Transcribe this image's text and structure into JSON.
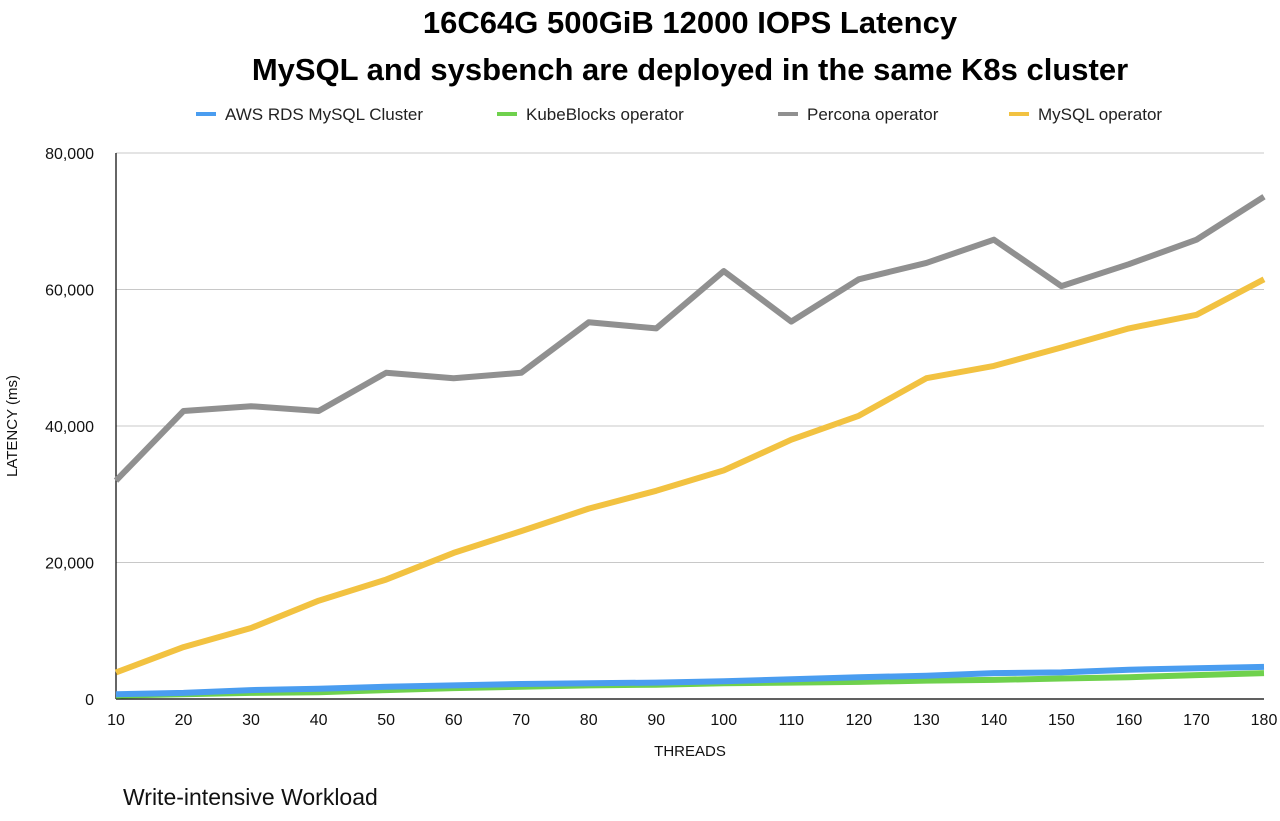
{
  "chart_data": {
    "type": "line",
    "title": [
      "16C64G 500GiB 12000 IOPS Latency",
      "MySQL and sysbench are deployed in the same K8s cluster"
    ],
    "xlabel": "THREADS",
    "ylabel": "LATENCY  (ms)",
    "footnote": "Write-intensive Workload",
    "x": [
      10,
      20,
      30,
      40,
      50,
      60,
      70,
      80,
      90,
      100,
      110,
      120,
      130,
      140,
      150,
      160,
      170,
      180
    ],
    "x_tick_labels": [
      "10",
      "20",
      "30",
      "40",
      "50",
      "60",
      "70",
      "80",
      "90",
      "100",
      "110",
      "120",
      "130",
      "140",
      "150",
      "160",
      "170",
      "180"
    ],
    "ylim": [
      0,
      80000
    ],
    "y_ticks": [
      0,
      20000,
      40000,
      60000,
      80000
    ],
    "y_tick_labels": [
      "0",
      "20,000",
      "40,000",
      "60,000",
      "80,000"
    ],
    "grid": "horizontal",
    "legend_position": "top",
    "series": [
      {
        "name": "AWS RDS MySQL Cluster",
        "color": "#4a9df0",
        "values": [
          700,
          900,
          1300,
          1500,
          1800,
          2000,
          2200,
          2300,
          2400,
          2600,
          2900,
          3200,
          3400,
          3800,
          3900,
          4300,
          4500,
          4700
        ]
      },
      {
        "name": "KubeBlocks operator",
        "color": "#6fd14d",
        "values": [
          500,
          700,
          900,
          1000,
          1300,
          1600,
          1800,
          2000,
          2100,
          2300,
          2400,
          2500,
          2700,
          2800,
          3000,
          3200,
          3500,
          3800
        ]
      },
      {
        "name": "Percona operator",
        "color": "#909090",
        "values": [
          32000,
          42200,
          42900,
          42200,
          47800,
          47000,
          47800,
          55200,
          54300,
          62700,
          55300,
          61500,
          63900,
          67300,
          60500,
          63700,
          67300,
          73600
        ]
      },
      {
        "name": "MySQL operator",
        "color": "#f2c241",
        "values": [
          3900,
          7600,
          10400,
          14400,
          17500,
          21400,
          24600,
          27900,
          30500,
          33500,
          38000,
          41500,
          47000,
          48800,
          51500,
          54300,
          56300,
          61500
        ]
      }
    ]
  }
}
